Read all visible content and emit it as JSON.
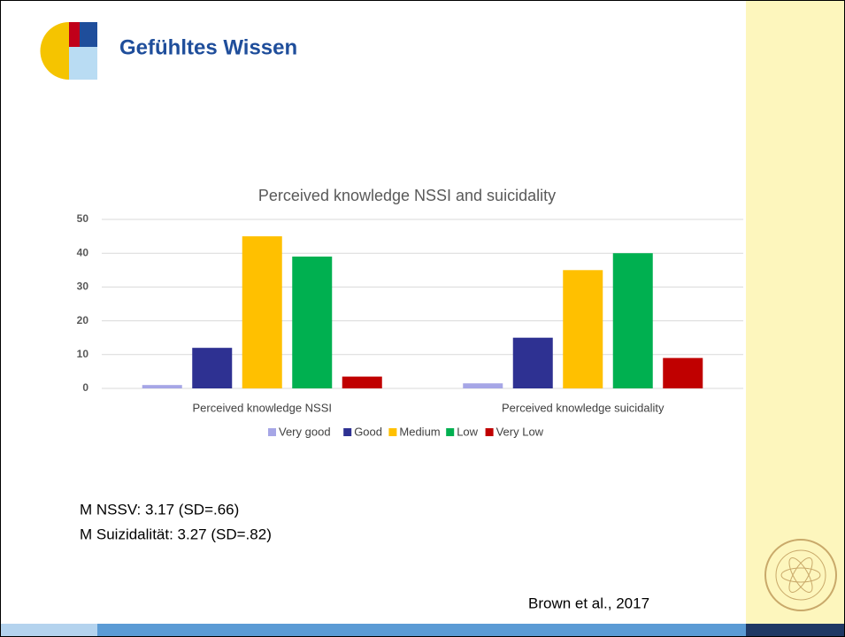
{
  "slide": {
    "title": "Gefühltes Wissen",
    "notes": [
      "M NSSV: 3.17 (SD=.66)",
      "M Suizidalität: 3.27 (SD=.82)"
    ],
    "source": "Brown et al., 2017"
  },
  "chart_data": {
    "type": "bar",
    "title": "Perceived knowledge NSSI and suicidality",
    "categories": [
      "Perceived knowledge NSSI",
      "Perceived knowledge suicidality"
    ],
    "series": [
      {
        "name": "Very good",
        "color": "#a6a6e6",
        "values": [
          1,
          1.5
        ]
      },
      {
        "name": "Good",
        "color": "#2e3192",
        "values": [
          12,
          15
        ]
      },
      {
        "name": "Medium",
        "color": "#ffc000",
        "values": [
          45,
          35
        ]
      },
      {
        "name": "Low",
        "color": "#00b050",
        "values": [
          39,
          40
        ]
      },
      {
        "name": "Very Low",
        "color": "#c00000",
        "values": [
          3.5,
          9
        ]
      }
    ],
    "ylim": [
      0,
      50
    ],
    "yticks": [
      0,
      10,
      20,
      30,
      40,
      50
    ],
    "grid": true,
    "legend": "bottom"
  }
}
